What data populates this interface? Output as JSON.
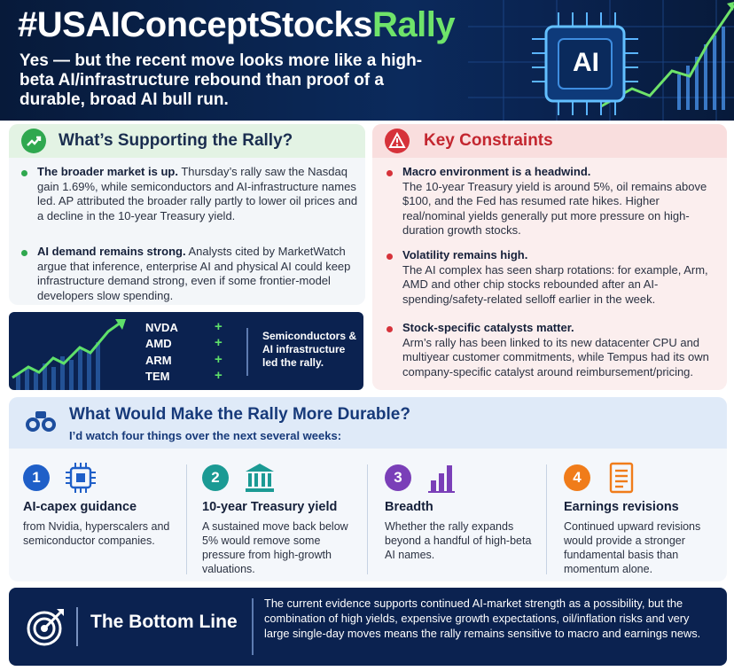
{
  "header": {
    "title_main": "#USAIConceptStocks",
    "title_accent": "Rally",
    "subtitle": "Yes — but the recent move looks more like a high-beta AI/infrastructure rebound than proof of a durable, broad AI bull run.",
    "chip_label": "AI"
  },
  "support": {
    "title": "What’s Supporting the Rally?",
    "icon": "trending-up-icon",
    "items": [
      {
        "bold": "The broader market is up.",
        "text": " Thursday’s rally saw the Nasdaq gain 1.69%, while semiconductors and AI-infrastructure names led. AP attributed the broader rally partly to lower oil prices and a decline in the 10-year Treasury yield."
      },
      {
        "bold": "AI demand remains strong.",
        "text": " Analysts cited by MarketWatch argue that inference, enterprise AI and physical AI could keep infrastructure demand strong, even if some frontier-model developers slow spending."
      }
    ]
  },
  "ticker": {
    "symbols": [
      "NVDA",
      "AMD",
      "ARM",
      "TEM"
    ],
    "plus": "+",
    "note": "Semiconductors & AI infrastructure led the rally."
  },
  "constraints": {
    "title": "Key Constraints",
    "icon": "warning-icon",
    "items": [
      {
        "bold": "Macro environment is a headwind.",
        "text": "The 10-year Treasury yield is around 5%, oil remains above $100, and the Fed has resumed rate hikes. Higher real/nominal yields generally put more pressure on high-duration growth stocks."
      },
      {
        "bold": "Volatility remains high.",
        "text": "The AI complex has seen sharp rotations: for example, Arm, AMD and other chip stocks rebounded after an AI-spending/safety-related selloff earlier in the week."
      },
      {
        "bold": "Stock-specific catalysts matter.",
        "text": "Arm’s rally has been linked to its new datacenter CPU and multiyear customer commitments, while Tempus had its own company-specific catalyst around reimbursement/pricing."
      }
    ]
  },
  "durable": {
    "title": "What Would Make the Rally More Durable?",
    "subtitle": "I’d watch four things over the next several weeks:",
    "icon": "binoculars-icon",
    "items": [
      {
        "num": "1",
        "color": "#1f5fc8",
        "icon": "chip-icon",
        "title": "AI-capex guidance",
        "text": "from Nvidia, hyperscalers and semiconductor companies."
      },
      {
        "num": "2",
        "color": "#1b9a94",
        "icon": "bank-icon",
        "title": "10-year Treasury yield",
        "text": "A sustained move back below 5% would remove some pressure from high-growth valuations."
      },
      {
        "num": "3",
        "color": "#7a3fb8",
        "icon": "bar-chart-icon",
        "title": "Breadth",
        "text": "Whether the rally expands beyond a handful of high-beta AI names."
      },
      {
        "num": "4",
        "color": "#f07c1a",
        "icon": "document-icon",
        "title": "Earnings revisions",
        "text": "Continued upward revisions would provide a stronger fundamental basis than momentum alone."
      }
    ]
  },
  "bottom": {
    "title": "The Bottom Line",
    "icon": "target-icon",
    "text": "The current evidence supports continued AI-market strength as a possibility, but the combination of high yields, expensive growth expectations, oil/inflation risks and very large single-day moves means the rally remains sensitive to macro and earnings news."
  },
  "colors": {
    "navy": "#0b2250",
    "green": "#2fa84f",
    "red": "#d6323a",
    "blue_title": "#173a7a"
  }
}
